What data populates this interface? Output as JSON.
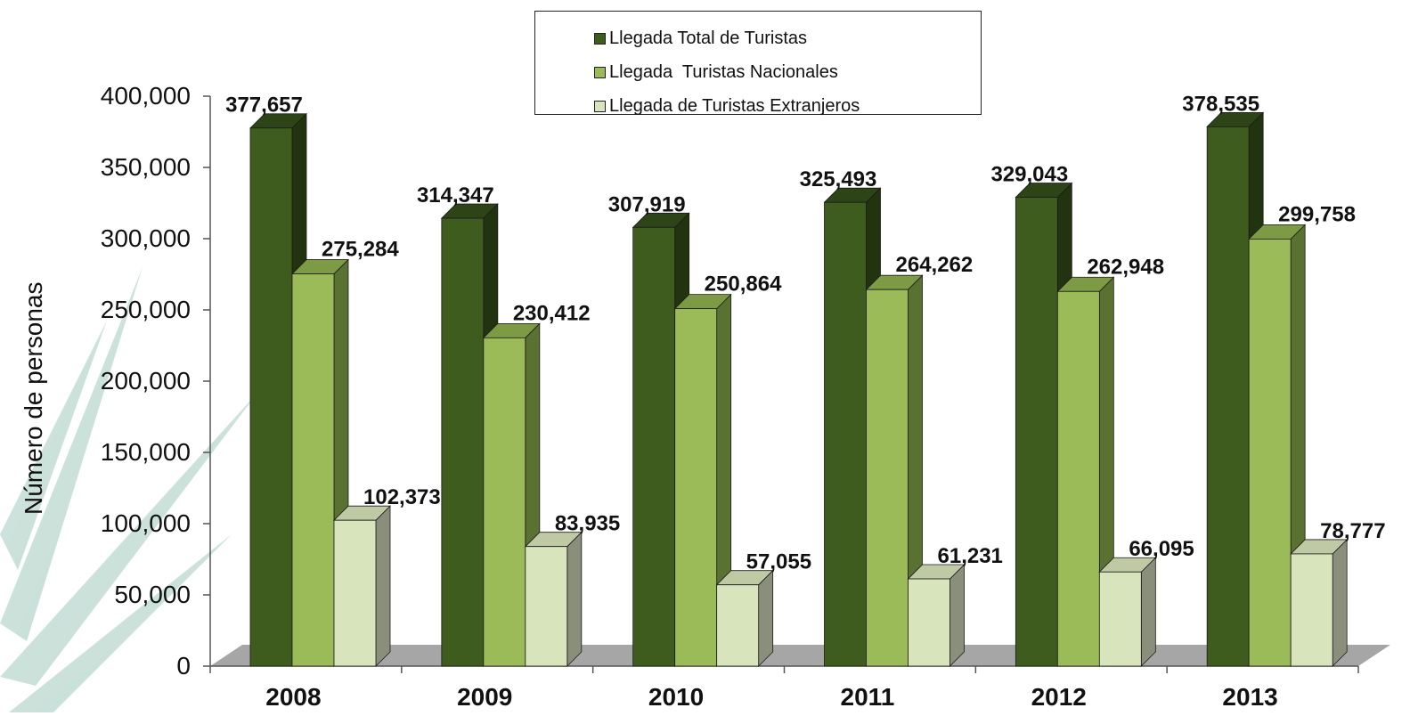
{
  "chart_data": {
    "type": "bar",
    "categories": [
      "2008",
      "2009",
      "2010",
      "2011",
      "2012",
      "2013"
    ],
    "series": [
      {
        "name": "Llegada Total de Turistas",
        "color": "#3d5c1e",
        "values": [
          377657,
          314347,
          307919,
          325493,
          329043,
          378535
        ]
      },
      {
        "name": "Llegada  Turistas Nacionales",
        "color": "#9bbb59",
        "values": [
          275284,
          230412,
          250864,
          264262,
          262948,
          299758
        ]
      },
      {
        "name": "Llegada de Turistas Extranjeros",
        "color": "#d8e4bc",
        "values": [
          102373,
          83935,
          57055,
          61231,
          66095,
          78777
        ]
      }
    ],
    "data_labels": [
      [
        "377,657",
        "275,284",
        "102,373"
      ],
      [
        "314,347",
        "230,412",
        "83,935"
      ],
      [
        "307,919",
        "250,864",
        "57,055"
      ],
      [
        "325,493",
        "264,262",
        "61,231"
      ],
      [
        "329,043",
        "262,948",
        "66,095"
      ],
      [
        "378,535",
        "299,758",
        "78,777"
      ]
    ],
    "yticks": [
      "0",
      "50,000",
      "100,000",
      "150,000",
      "200,000",
      "250,000",
      "300,000",
      "350,000",
      "400,000"
    ],
    "ylabel": "Número de personas",
    "xlabel": "",
    "title": "",
    "ylim": [
      0,
      400000
    ],
    "style": "3d-clustered-column",
    "legend_position": "top-center"
  }
}
